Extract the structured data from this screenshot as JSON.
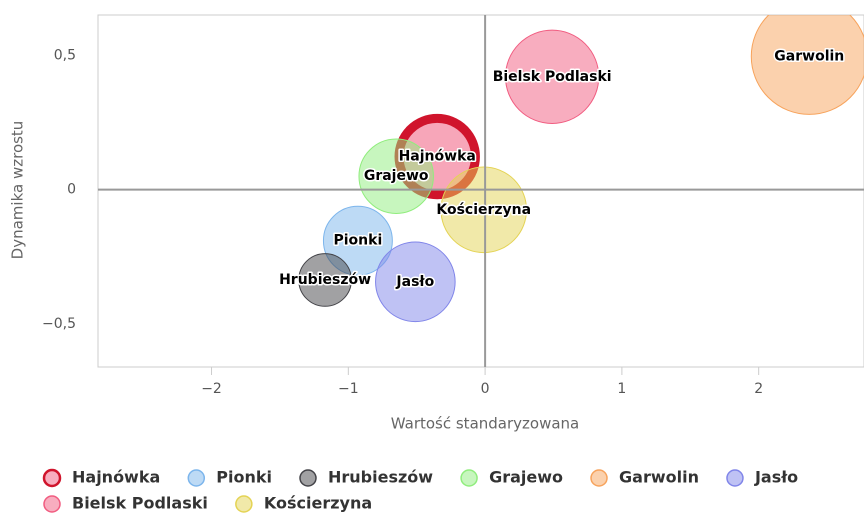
{
  "chart_data": {
    "type": "bubble",
    "x_label": "Wartość standaryzowana",
    "y_label": "Dynamika wzrostu",
    "xlim": [
      -2.83,
      2.77
    ],
    "ylim": [
      -0.66,
      0.65
    ],
    "xticks": [
      {
        "value": -2,
        "label": "−2"
      },
      {
        "value": -1,
        "label": "−1"
      },
      0,
      1,
      2
    ],
    "yticks": [
      {
        "value": -0.5,
        "label": "−0,5"
      },
      0,
      {
        "value": 0.5,
        "label": "0,5"
      }
    ],
    "legend": "bottom-left",
    "series": [
      {
        "name": "Hajnówka",
        "color": "#f15c80",
        "stroke": "#d0142c",
        "highlight": true,
        "x": [
          -0.35
        ],
        "values": [
          0.123
        ],
        "sizes": [
          18
        ]
      },
      {
        "name": "Pionki",
        "color": "#7cb5ec",
        "x": [
          -0.93
        ],
        "values": [
          -0.19
        ],
        "sizes": [
          12
        ]
      },
      {
        "name": "Hrubieszów",
        "color": "#434348",
        "x": [
          -1.17
        ],
        "values": [
          -0.336
        ],
        "sizes": [
          7
        ]
      },
      {
        "name": "Grajewo",
        "color": "#90ed7d",
        "x": [
          -0.65
        ],
        "values": [
          0.05
        ],
        "sizes": [
          14
        ]
      },
      {
        "name": "Garwolin",
        "color": "#f7a35c",
        "x": [
          2.37
        ],
        "values": [
          0.496
        ],
        "sizes": [
          34
        ]
      },
      {
        "name": "Jasło",
        "color": "#8085e9",
        "x": [
          -0.51
        ],
        "values": [
          -0.343
        ],
        "sizes": [
          16
        ]
      },
      {
        "name": "Bielsk Podlaski",
        "color": "#f15c80",
        "x": [
          0.49
        ],
        "values": [
          0.42
        ],
        "sizes": [
          22
        ]
      },
      {
        "name": "Kościerzyna",
        "color": "#e4d354",
        "x": [
          -0.01
        ],
        "values": [
          -0.075
        ],
        "sizes": [
          18.5
        ]
      }
    ]
  }
}
